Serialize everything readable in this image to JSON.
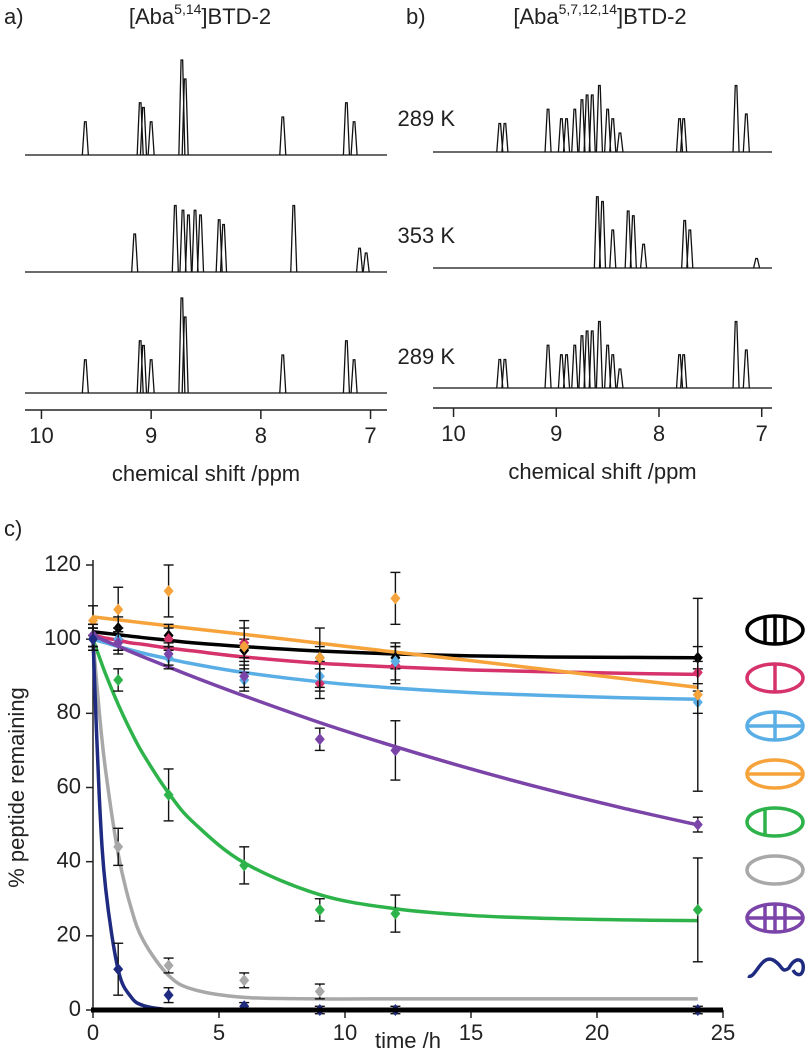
{
  "chart_data": [
    {
      "type": "spectrum",
      "panel": "a)",
      "title": {
        "base": "[Aba",
        "sup": "5,14",
        "tail": "]BTD-2"
      },
      "xlabel": "chemical shift /ppm",
      "xlim": [
        10.15,
        6.85
      ],
      "xticks": [
        10,
        9,
        8,
        7
      ],
      "traces": [
        {
          "label": "289 K",
          "x": [
            9.6,
            9.1,
            9.07,
            9.0,
            8.72,
            8.69,
            7.8,
            7.22,
            7.15
          ],
          "values": [
            35,
            55,
            50,
            35,
            100,
            80,
            40,
            55,
            35
          ]
        },
        {
          "label": "353 K",
          "x": [
            9.15,
            8.78,
            8.71,
            8.66,
            8.6,
            8.55,
            8.38,
            8.34,
            7.7,
            7.1,
            7.04
          ],
          "values": [
            40,
            70,
            65,
            60,
            65,
            60,
            55,
            50,
            70,
            25,
            20
          ]
        },
        {
          "label": "289 K",
          "x": [
            9.6,
            9.1,
            9.07,
            9.0,
            8.72,
            8.69,
            7.8,
            7.22,
            7.15
          ],
          "values": [
            35,
            55,
            50,
            35,
            100,
            80,
            40,
            55,
            35
          ]
        }
      ]
    },
    {
      "type": "spectrum",
      "panel": "b)",
      "title": {
        "base": "[Aba",
        "sup": "5,7,12,14",
        "tail": "]BTD-2"
      },
      "xlabel": "chemical shift /ppm",
      "xlim": [
        10.2,
        6.9
      ],
      "xticks": [
        10,
        9,
        8,
        7
      ],
      "traces": [
        {
          "x": [
            9.55,
            9.5,
            9.08,
            8.95,
            8.9,
            8.82,
            8.75,
            8.7,
            8.65,
            8.58,
            8.5,
            8.45,
            8.38,
            7.8,
            7.76,
            7.25,
            7.15
          ],
          "values": [
            30,
            30,
            45,
            35,
            35,
            45,
            55,
            60,
            60,
            70,
            45,
            35,
            20,
            35,
            35,
            70,
            40
          ]
        },
        {
          "x": [
            8.6,
            8.55,
            8.45,
            8.3,
            8.25,
            8.15,
            7.75,
            7.7,
            7.05
          ],
          "values": [
            75,
            70,
            40,
            60,
            55,
            25,
            50,
            40,
            10
          ]
        },
        {
          "x": [
            9.55,
            9.5,
            9.08,
            8.95,
            8.9,
            8.82,
            8.75,
            8.7,
            8.65,
            8.58,
            8.5,
            8.45,
            8.38,
            7.8,
            7.76,
            7.25,
            7.15
          ],
          "values": [
            30,
            30,
            45,
            35,
            35,
            45,
            55,
            60,
            60,
            70,
            45,
            35,
            20,
            35,
            35,
            70,
            40
          ]
        }
      ]
    },
    {
      "type": "scatter",
      "panel": "c)",
      "xlabel": "time /h",
      "ylabel": "% peptide remaining",
      "xlim": [
        0,
        25
      ],
      "ylim": [
        0,
        120
      ],
      "xticks": [
        0,
        5,
        10,
        15,
        20,
        25
      ],
      "yticks": [
        0,
        20,
        40,
        60,
        80,
        100,
        120
      ],
      "x": [
        0,
        1,
        3,
        6,
        9,
        12,
        24
      ],
      "fit_x": [
        0,
        0.25,
        0.5,
        1,
        1.5,
        2,
        3,
        4,
        6,
        9,
        12,
        15,
        18,
        21,
        24
      ],
      "series": [
        {
          "color": "#000000",
          "values": [
            101,
            103,
            101,
            97,
            95,
            95,
            95
          ],
          "errors": [
            3,
            3,
            3,
            3,
            3,
            3,
            3
          ],
          "fit": [
            102,
            101.8,
            101.6,
            101.2,
            100.8,
            100.4,
            99.7,
            99,
            98,
            96.8,
            96,
            95.5,
            95.2,
            95.1,
            95
          ]
        },
        {
          "color": "#d6336c",
          "values": [
            101,
            100,
            100,
            99,
            88,
            93,
            91
          ],
          "errors": [
            3,
            3,
            3,
            4,
            4,
            5,
            3
          ],
          "fit": [
            101,
            100.7,
            100.3,
            99.7,
            99,
            98.6,
            97.6,
            96.8,
            95.2,
            93.5,
            92.5,
            91.7,
            91.2,
            90.8,
            90.5
          ]
        },
        {
          "color": "#5aaee6",
          "values": [
            101,
            100,
            95,
            89,
            90,
            94,
            83
          ],
          "errors": [
            3,
            3,
            3,
            3,
            4,
            5,
            3
          ],
          "fit": [
            100,
            99.5,
            99,
            98,
            97.1,
            96.2,
            94.7,
            93.3,
            91,
            88.5,
            86.8,
            85.6,
            84.8,
            84.2,
            83.8
          ]
        },
        {
          "color": "#f5a33a",
          "values": [
            105,
            108,
            113,
            98,
            95,
            111,
            85
          ],
          "errors": [
            4,
            6,
            7,
            7,
            8,
            7,
            26
          ],
          "fit": [
            106,
            105.8,
            105.6,
            105.2,
            104.8,
            104.4,
            103.6,
            102.8,
            101.3,
            98.9,
            96.5,
            94.2,
            91.8,
            89.4,
            87
          ]
        },
        {
          "color": "#2db34a",
          "values": [
            100,
            89,
            58,
            39,
            27,
            26,
            27
          ],
          "errors": [
            3,
            3,
            7,
            5,
            3,
            5,
            14
          ],
          "fit": [
            100,
            95.2,
            90.6,
            82.4,
            75.2,
            68.9,
            58.5,
            50.5,
            39.7,
            31.1,
            27.3,
            25.5,
            24.7,
            24.3,
            24.1
          ]
        },
        {
          "color": "#a8a8a8",
          "values": [
            100,
            44,
            12,
            8,
            5,
            null,
            null
          ],
          "errors": [
            3,
            5,
            2,
            2,
            2,
            null,
            null
          ],
          "fit": [
            100,
            80.3,
            64.6,
            42.1,
            27.8,
            18.7,
            9.3,
            5.5,
            3.4,
            3,
            3,
            3,
            3,
            3,
            3
          ]
        },
        {
          "color": "#7b44a8",
          "values": [
            101,
            99,
            96,
            90,
            73,
            70,
            50
          ],
          "errors": [
            3,
            3,
            3,
            3,
            3,
            8,
            2
          ],
          "fit": [
            101,
            100.3,
            99.5,
            98.1,
            96.6,
            95.2,
            92.5,
            89.8,
            84.7,
            77.5,
            71,
            65,
            59.5,
            54.5,
            49.9
          ]
        },
        {
          "color": "#1f2b80",
          "values": [
            100,
            11,
            4,
            1,
            0,
            0,
            0
          ],
          "errors": [
            3,
            7,
            2,
            1,
            1,
            1,
            1
          ],
          "fit": [
            100,
            57.4,
            32.9,
            10.8,
            3.6,
            1.2,
            0.1,
            0,
            0,
            0,
            0,
            0,
            0,
            0,
            0
          ]
        }
      ]
    }
  ]
}
